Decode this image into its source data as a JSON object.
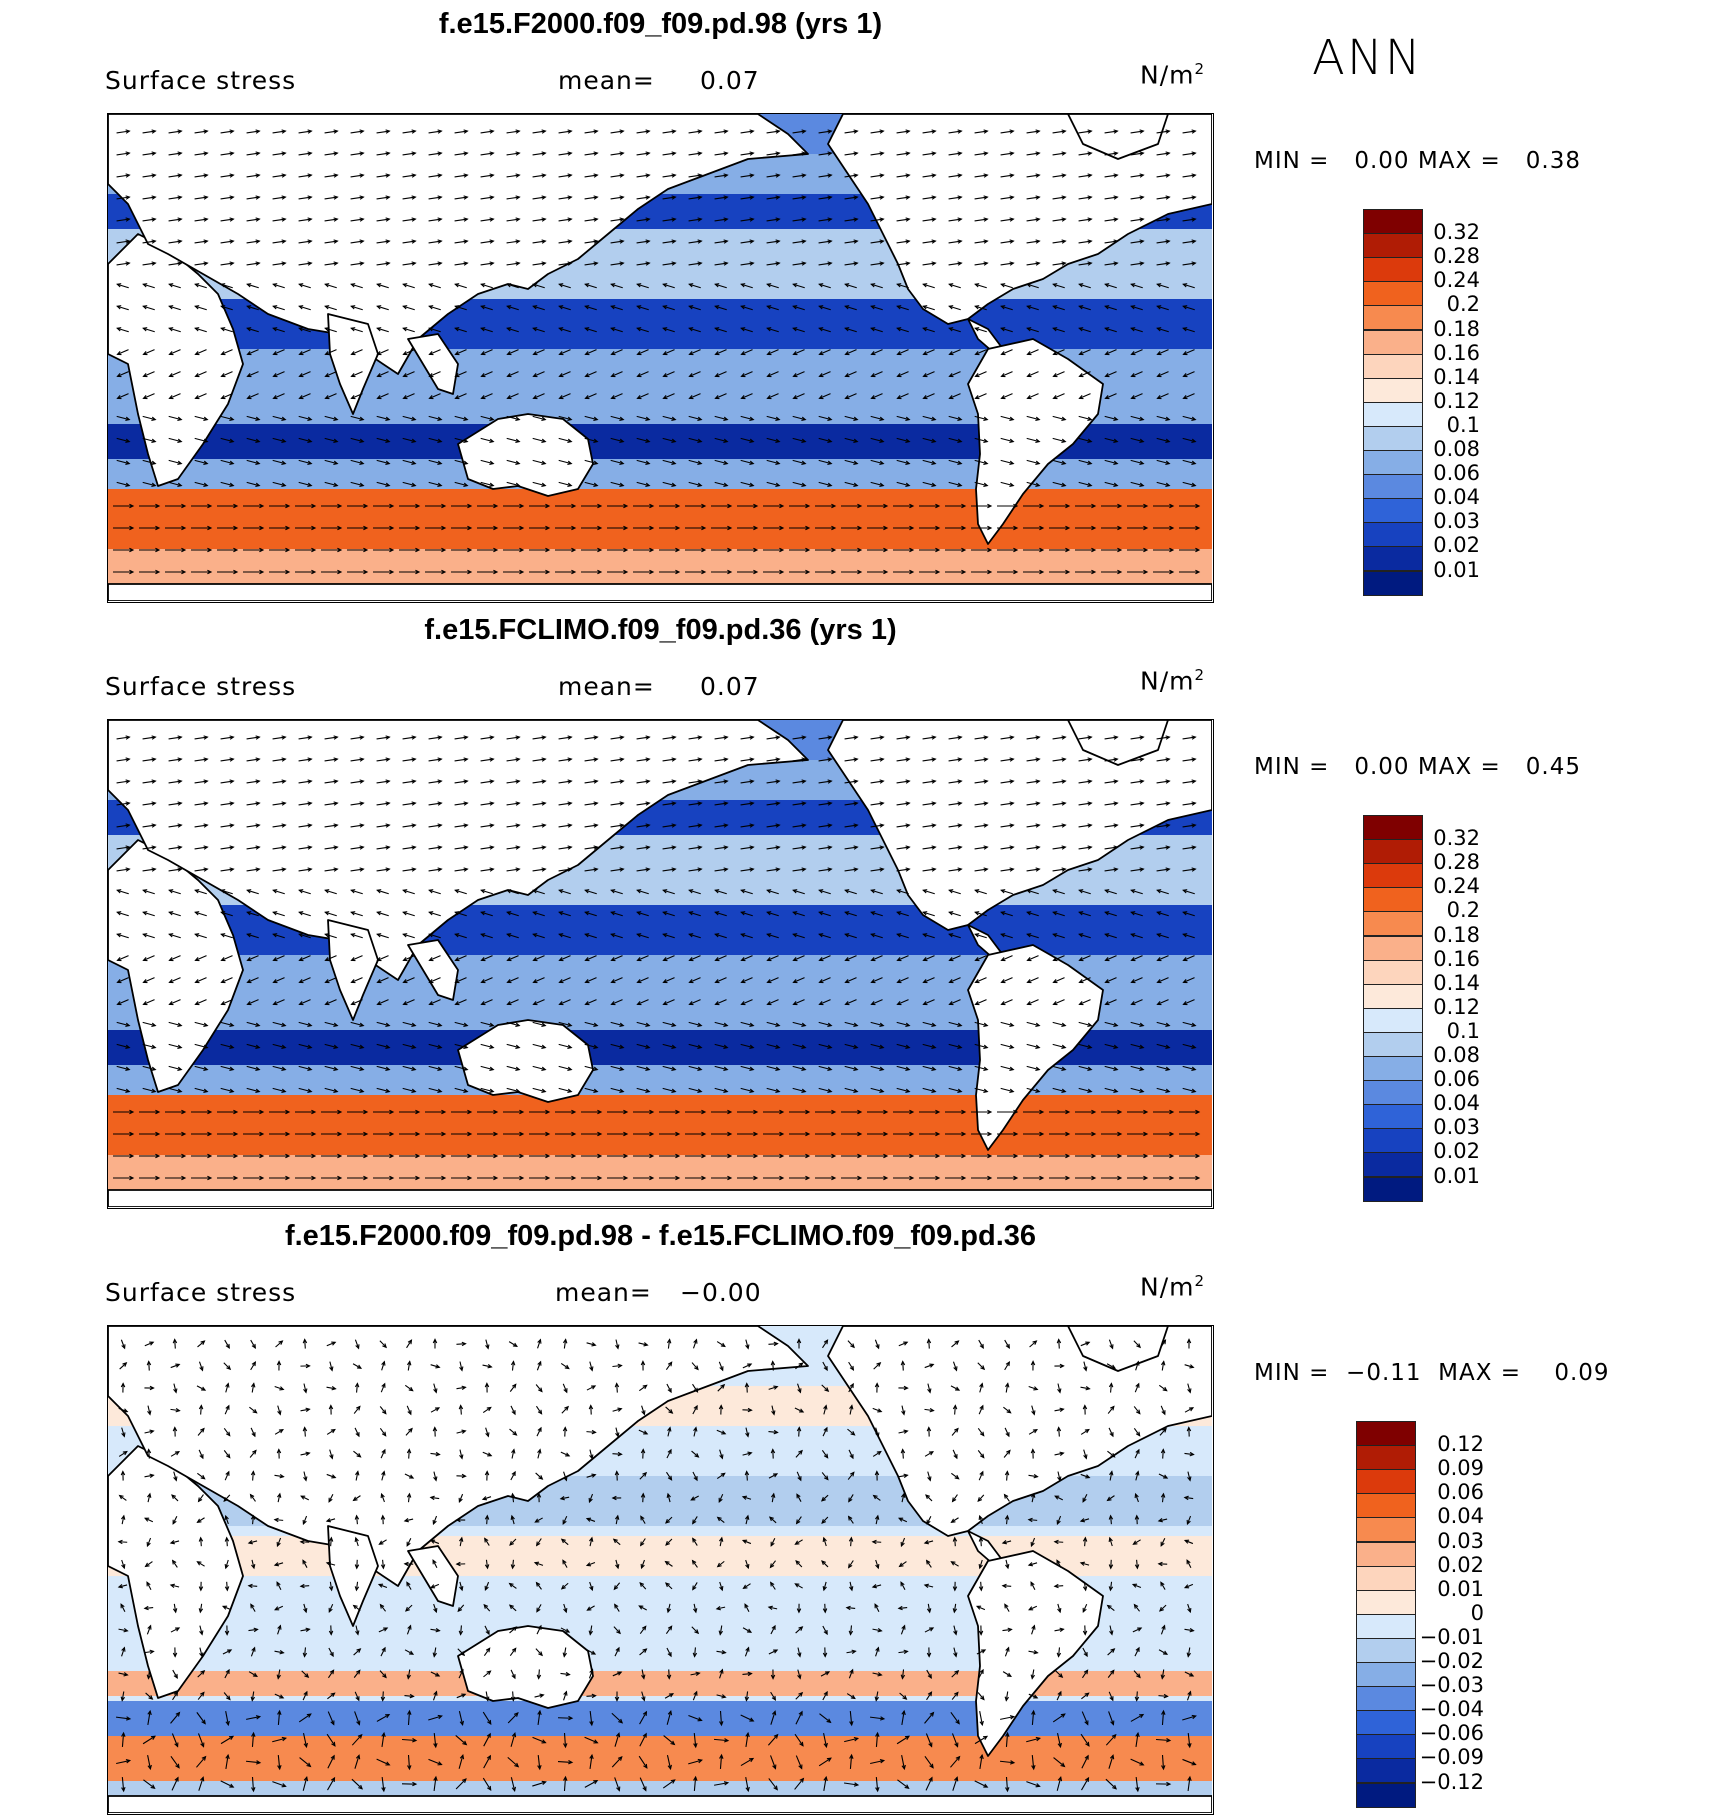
{
  "season": "ANN",
  "panels": [
    {
      "title": "f.e15.F2000.f09_f09.pd.98 (yrs 1)",
      "variable": "Surface stress",
      "mean_label": "mean=",
      "mean_value": "0.07",
      "units": "N/m",
      "units_sup": "2",
      "min_label": "MIN =",
      "min_value": "0.00",
      "max_label": "MAX =",
      "max_value": "0.38",
      "colorbar_labels": [
        "0.32",
        "0.28",
        "0.24",
        "0.2",
        "0.18",
        "0.16",
        "0.14",
        "0.12",
        "0.1",
        "0.08",
        "0.06",
        "0.04",
        "0.03",
        "0.02",
        "0.01"
      ],
      "map_style": "absolute"
    },
    {
      "title": "f.e15.FCLIMO.f09_f09.pd.36 (yrs 1)",
      "variable": "Surface stress",
      "mean_label": "mean=",
      "mean_value": "0.07",
      "units": "N/m",
      "units_sup": "2",
      "min_label": "MIN =",
      "min_value": "0.00",
      "max_label": "MAX =",
      "max_value": "0.45",
      "colorbar_labels": [
        "0.32",
        "0.28",
        "0.24",
        "0.2",
        "0.18",
        "0.16",
        "0.14",
        "0.12",
        "0.1",
        "0.08",
        "0.06",
        "0.04",
        "0.03",
        "0.02",
        "0.01"
      ],
      "map_style": "absolute"
    },
    {
      "title": "f.e15.F2000.f09_f09.pd.98 - f.e15.FCLIMO.f09_f09.pd.36",
      "variable": "Surface stress",
      "mean_label": "mean=",
      "mean_value": "−0.00",
      "units": "N/m",
      "units_sup": "2",
      "min_label": "MIN =",
      "min_value": "−0.11",
      "max_label": "MAX =",
      "max_value": "0.09",
      "colorbar_labels": [
        "0.12",
        "0.09",
        "0.06",
        "0.04",
        "0.03",
        "0.02",
        "0.01",
        "0",
        "−0.01",
        "−0.02",
        "−0.03",
        "−0.04",
        "−0.06",
        "−0.09",
        "−0.12"
      ],
      "map_style": "difference"
    }
  ],
  "colors": {
    "absolute_scale": [
      "#7f0000",
      "#b01c05",
      "#dc3a0c",
      "#f0621e",
      "#f78a4f",
      "#fab08a",
      "#fdd5bd",
      "#fde9da",
      "#d7e9fb",
      "#b2ceee",
      "#86aee6",
      "#5b89e0",
      "#2f63d8",
      "#1742c0",
      "#0a2aa0",
      "#001a80"
    ],
    "difference_scale": [
      "#7f0000",
      "#b01c05",
      "#dc3a0c",
      "#f0621e",
      "#f78a4f",
      "#fab08a",
      "#fdd5bd",
      "#fde9da",
      "#d7e9fb",
      "#b2ceee",
      "#86aee6",
      "#5b89e0",
      "#2f63d8",
      "#1742c0",
      "#0a2aa0",
      "#001a80"
    ],
    "land": "#ffffff",
    "coast": "#000000"
  }
}
